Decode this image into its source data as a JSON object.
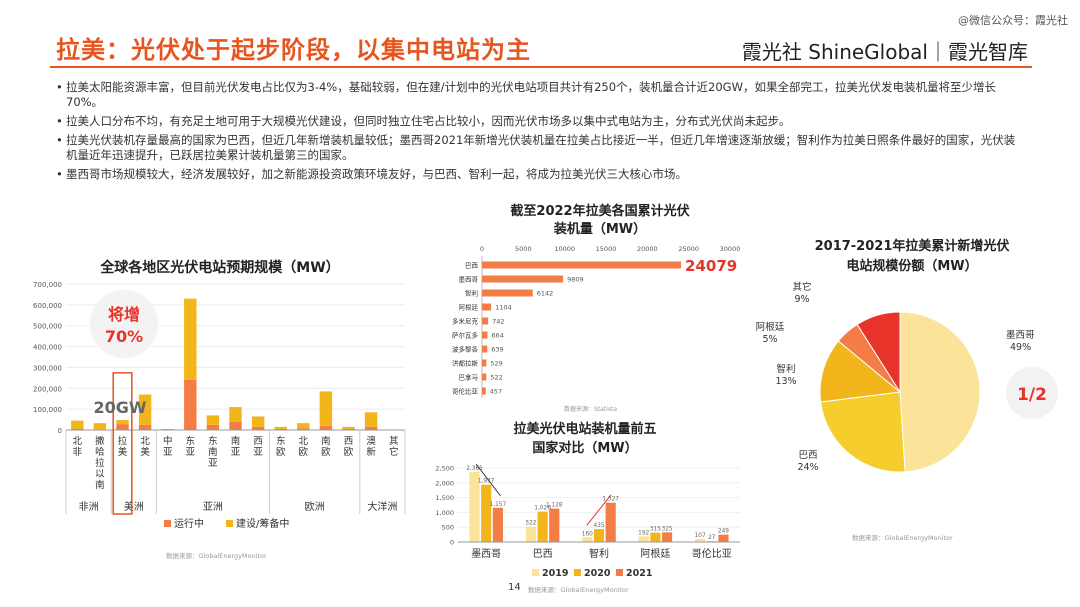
{
  "watermark": "@微信公众号：霞光社",
  "title": "拉美：光伏处于起步阶段，以集中电站为主",
  "brand": "霞光社 ShineGlobal｜霞光智库",
  "colors": {
    "accent": "#e8541e",
    "orange": "#f47c45",
    "yellow": "#f2b51c",
    "lightyellow": "#fbe39a",
    "red": "#e8332a"
  },
  "bullets": [
    "拉美太阳能资源丰富，但目前光伏发电占比仅为3-4%，基础较弱，但在建/计划中的光伏电站项目共计有250个，装机量合计近20GW，如果全部完工，拉美光伏发电装机量将至少增长70%。",
    "拉美人口分布不均，有充足土地可用于大规模光伏建设，但同时独立住宅占比较小，因而光伏市场多以集中式电站为主，分布式光伏尚未起步。",
    "拉美光伏装机存量最高的国家为巴西，但近几年新增装机量较低；墨西哥2021年新增光伏装机量在拉美占比接近一半，但近几年增速逐渐放缓；智利作为拉美日照条件最好的国家，光伏装机量近年迅速提升，已跃居拉美累计装机量第三的国家。",
    "墨西哥市场规模较大，经济发展较好，加之新能源投资政策环境友好，与巴西、智利一起，将成为拉美光伏三大核心市场。"
  ],
  "page_number": "14",
  "chart_data": [
    {
      "type": "bar",
      "stacked": true,
      "title": "全球各地区光伏电站预期规模（MW）",
      "categories": [
        "北非",
        "撒哈拉以南",
        "拉美",
        "北美",
        "中亚",
        "东亚",
        "东南亚",
        "南亚",
        "西亚",
        "东欧",
        "北欧",
        "南欧",
        "西欧",
        "澳新",
        "其它"
      ],
      "groups": [
        {
          "label": "非洲",
          "start": 0,
          "end": 1
        },
        {
          "label": "美洲",
          "start": 2,
          "end": 3
        },
        {
          "label": "亚洲",
          "start": 4,
          "end": 8
        },
        {
          "label": "欧洲",
          "start": 9,
          "end": 12
        },
        {
          "label": "大洋洲",
          "start": 13,
          "end": 14
        }
      ],
      "series": [
        {
          "name": "运行中",
          "color": "#f47c45",
          "values": [
            5000,
            3000,
            28000,
            25000,
            0,
            240000,
            25000,
            40000,
            15000,
            5000,
            8000,
            20000,
            5000,
            15000,
            0
          ]
        },
        {
          "name": "建设/筹备中",
          "color": "#f2b51c",
          "values": [
            40000,
            30000,
            20000,
            145000,
            5000,
            390000,
            45000,
            70000,
            50000,
            10000,
            25000,
            165000,
            10000,
            70000,
            2000
          ]
        }
      ],
      "ylim": [
        0,
        700000
      ],
      "yticks": [
        "0",
        "100,000",
        "200,000",
        "300,000",
        "400,000",
        "500,000",
        "600,000",
        "700,000"
      ],
      "ytick_values": [
        0,
        100000,
        200000,
        300000,
        400000,
        500000,
        600000,
        700000
      ],
      "highlight_category": "拉美",
      "annotation_big": "将增\n70%",
      "annotation_big_l1": "将增",
      "annotation_big_l2": "70%",
      "annotation_label": "20GW",
      "source": "数据来源：GlobalEnergyMonitor"
    },
    {
      "type": "bar",
      "orientation": "horizontal",
      "title": "截至2022年拉美各国累计光伏装机量（MW）",
      "title_l1": "截至2022年拉美各国累计光伏",
      "title_l2": "装机量（MW）",
      "categories": [
        "巴西",
        "墨西哥",
        "智利",
        "阿根廷",
        "多米尼克",
        "萨尔瓦多",
        "波多黎各",
        "洪都拉斯",
        "巴拿马",
        "哥伦比亚"
      ],
      "values": [
        24079,
        9809,
        6142,
        1104,
        742,
        664,
        639,
        529,
        522,
        457
      ],
      "value_labels": [
        "24079",
        "9809",
        "6142",
        "1104",
        "742",
        "664",
        "639",
        "529",
        "522",
        "457"
      ],
      "xlim": [
        0,
        30000
      ],
      "xticks": [
        "0",
        "5000",
        "10000",
        "15000",
        "20000",
        "25000",
        "30000"
      ],
      "xtick_values": [
        0,
        5000,
        10000,
        15000,
        20000,
        25000,
        30000
      ],
      "source": "数据来源：Statista"
    },
    {
      "type": "bar",
      "title": "拉美光伏电站装机量前五国家对比（MW）",
      "title_l1": "拉美光伏电站装机量前五",
      "title_l2": "国家对比（MW）",
      "categories": [
        "墨西哥",
        "巴西",
        "智利",
        "阿根廷",
        "哥伦比亚"
      ],
      "series": [
        {
          "name": "2019",
          "color": "#fbe39a",
          "values": [
            2365,
            522,
            160,
            192,
            107
          ],
          "labels": [
            "2,365",
            "522",
            "160",
            "192",
            "107"
          ]
        },
        {
          "name": "2020",
          "color": "#f2b51c",
          "values": [
            1937,
            1026,
            435,
            315,
            27
          ],
          "labels": [
            "1,937",
            "1,026",
            "435",
            "315",
            "27"
          ]
        },
        {
          "name": "2021",
          "color": "#f47c45",
          "values": [
            1157,
            1128,
            1327,
            325,
            249
          ],
          "labels": [
            "1,157",
            "1,128",
            "1,327",
            "325",
            "249"
          ]
        }
      ],
      "ylim": [
        0,
        2500
      ],
      "yticks": [
        "0",
        "500",
        "1,000",
        "1,500",
        "2,000",
        "2,500"
      ],
      "ytick_values": [
        0,
        500,
        1000,
        1500,
        2000,
        2500
      ],
      "source": "数据来源：GlobalEnergyMonitor"
    },
    {
      "type": "pie",
      "title": "2017-2021年拉美累计新增光伏电站规模份额（MW）",
      "title_l1": "2017-2021年拉美累计新增光伏",
      "title_l2": "电站规模份额（MW）",
      "slices": [
        {
          "name": "墨西哥",
          "value": 49,
          "label": "49%",
          "color": "#fbe39a"
        },
        {
          "name": "巴西",
          "value": 24,
          "label": "24%",
          "color": "#f5cd2c"
        },
        {
          "name": "智利",
          "value": 13,
          "label": "13%",
          "color": "#f2b51c"
        },
        {
          "name": "阿根廷",
          "value": 5,
          "label": "5%",
          "color": "#f47c45"
        },
        {
          "name": "其它",
          "value": 9,
          "label": "9%",
          "color": "#e8332a"
        }
      ],
      "annotation": "1/2",
      "source": "数据来源：GlobalEnergyMonitor"
    }
  ]
}
